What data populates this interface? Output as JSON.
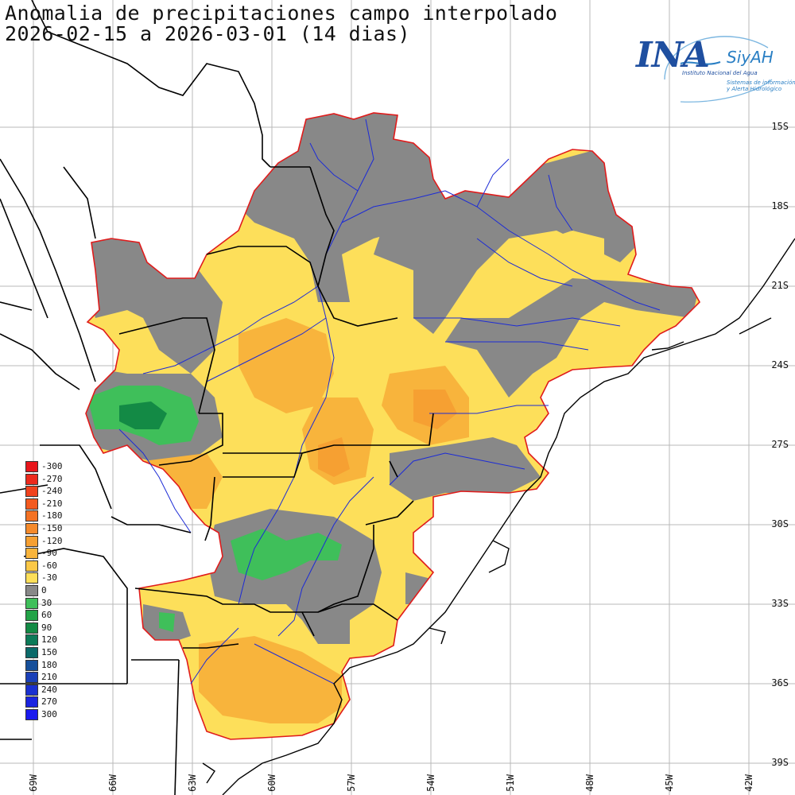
{
  "title": {
    "line1": "Anomalia de precipitaciones campo interpolado",
    "line2": "2026-02-15 a 2026-03-01 (14 dias)"
  },
  "logo": {
    "name": "INA",
    "system": "SiyAH",
    "subtitle": "Instituto Nacional del Agua",
    "desc1": "Sistemas de información",
    "desc2": "y Alerta Hidrológico"
  },
  "latitude_labels": [
    "15S",
    "18S",
    "21S",
    "24S",
    "27S",
    "30S",
    "33S",
    "36S",
    "39S"
  ],
  "longitude_labels": [
    "69W",
    "66W",
    "63W",
    "60W",
    "57W",
    "54W",
    "51W",
    "48W",
    "45W",
    "42W"
  ],
  "legend": [
    {
      "label": "-300",
      "color": "#e8161c"
    },
    {
      "label": "-270",
      "color": "#ec2a1d"
    },
    {
      "label": "-240",
      "color": "#f0421d"
    },
    {
      "label": "-210",
      "color": "#f35a1f"
    },
    {
      "label": "-180",
      "color": "#f47224"
    },
    {
      "label": "-150",
      "color": "#f58a2b"
    },
    {
      "label": "-120",
      "color": "#f6a032"
    },
    {
      "label": "-90",
      "color": "#f8b43c"
    },
    {
      "label": "-60",
      "color": "#fbc847"
    },
    {
      "label": "-30",
      "color": "#fddf5a"
    },
    {
      "label": "0",
      "color": "#888888"
    },
    {
      "label": "30",
      "color": "#3fbf5a"
    },
    {
      "label": "60",
      "color": "#22a347"
    },
    {
      "label": "90",
      "color": "#138a45"
    },
    {
      "label": "120",
      "color": "#0c7a58"
    },
    {
      "label": "150",
      "color": "#0b6a6a"
    },
    {
      "label": "180",
      "color": "#164f9a"
    },
    {
      "label": "210",
      "color": "#1a40b8"
    },
    {
      "label": "240",
      "color": "#1a30d0"
    },
    {
      "label": "270",
      "color": "#1a24e0"
    },
    {
      "label": "300",
      "color": "#1a1aee"
    }
  ],
  "colors": {
    "basin_outline": "#e01b1b",
    "rivers": "#1c2bd6",
    "borders": "#000000",
    "coast": "#000000",
    "grid": "#b8b8b8",
    "negative_light": "#fddf5a",
    "negative_medium": "#f8b43c",
    "negative_strong": "#f6a032",
    "neutral": "#888888",
    "positive_light": "#3fbf5a",
    "positive_strong": "#138a45"
  }
}
